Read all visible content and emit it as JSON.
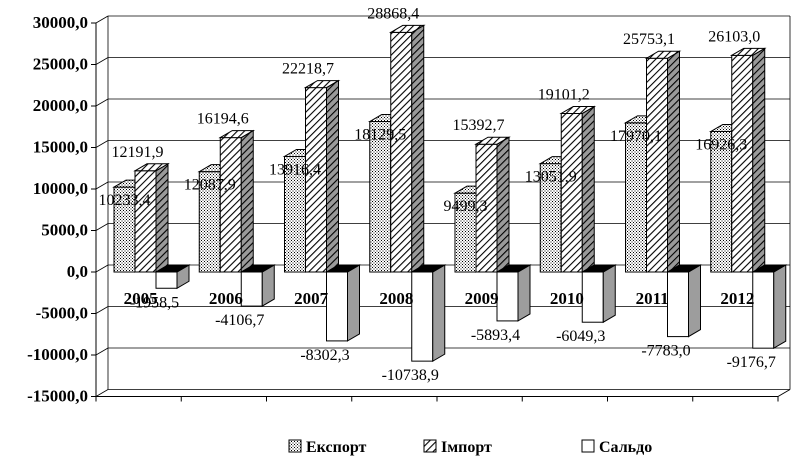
{
  "chart_data": {
    "type": "bar",
    "style": "3d-clustered-column",
    "categories": [
      "2005",
      "2006",
      "2007",
      "2008",
      "2009",
      "2010",
      "2011",
      "2012"
    ],
    "series": [
      {
        "name": "Експорт",
        "pattern": "dots",
        "values": [
          10233.4,
          12087.9,
          13916.4,
          18129.5,
          9499.3,
          13051.9,
          17970.1,
          16926.3
        ],
        "labels": [
          "10233,4",
          "12087,9",
          "13916,4",
          "18129,5",
          "9499,3",
          "13051,9",
          "17970,1",
          "16926,3"
        ]
      },
      {
        "name": "Імпорт",
        "pattern": "diagonal-hatch",
        "values": [
          12191.9,
          16194.6,
          22218.7,
          28868.4,
          15392.7,
          19101.2,
          25753.1,
          26103.0
        ],
        "labels": [
          "12191,9",
          "16194,6",
          "22218,7",
          "28868,4",
          "15392,7",
          "19101,2",
          "25753,1",
          "26103,0"
        ]
      },
      {
        "name": "Сальдо",
        "pattern": "white",
        "values": [
          -1958.5,
          -4106.7,
          -8302.3,
          -10738.9,
          -5893.4,
          -6049.3,
          -7783.0,
          -9176.7
        ],
        "labels": [
          "-1958,5",
          "-4106,7",
          "-8302,3",
          "-10738,9",
          "-5893,4",
          "-6049,3",
          "-7783,0",
          "-9176,7"
        ]
      }
    ],
    "ylim": [
      -15000,
      30000
    ],
    "yticks": [
      30000,
      25000,
      20000,
      15000,
      10000,
      5000,
      0,
      -5000,
      -10000,
      -15000
    ],
    "ytick_labels": [
      "30000,0",
      "25000,0",
      "20000,0",
      "15000,0",
      "10000,0",
      "5000,0",
      "0,0",
      "-5000,0",
      "-10000,0",
      "-15000,0"
    ],
    "grid": true,
    "legend_position": "bottom",
    "title": "",
    "xlabel": "",
    "ylabel": ""
  }
}
